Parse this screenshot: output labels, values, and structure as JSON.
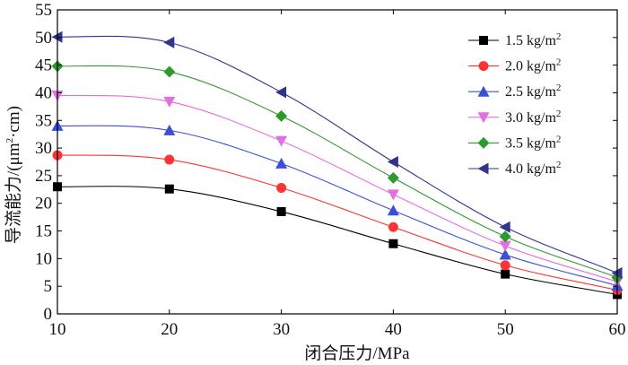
{
  "chart_data": {
    "type": "line",
    "title": "",
    "xlabel": "闭合压力/MPa",
    "ylabel_main": "导流能力/(μm",
    "ylabel_sup": "2",
    "ylabel_tail": "·cm)",
    "x": [
      10,
      20,
      30,
      40,
      50,
      60
    ],
    "xlim": [
      10,
      60
    ],
    "ylim": [
      0,
      55
    ],
    "xticks": [
      "10",
      "20",
      "30",
      "40",
      "50",
      "60"
    ],
    "yticks": [
      "0",
      "5",
      "10",
      "15",
      "20",
      "25",
      "30",
      "35",
      "40",
      "45",
      "50",
      "55"
    ],
    "legend_position": "top-right",
    "series": [
      {
        "name": "1.5 kg/m",
        "sup": "2",
        "color": "#000000",
        "marker": "square",
        "values": [
          23.0,
          22.6,
          18.5,
          12.7,
          7.2,
          3.5
        ]
      },
      {
        "name": "2.0 kg/m",
        "sup": "2",
        "color": "#ff3333",
        "marker": "circle",
        "values": [
          28.7,
          27.9,
          22.8,
          15.7,
          8.8,
          4.3
        ]
      },
      {
        "name": "2.5 kg/m",
        "sup": "2",
        "color": "#3b4fd9",
        "marker": "triangle-up",
        "values": [
          34.0,
          33.2,
          27.2,
          18.7,
          10.7,
          5.1
        ]
      },
      {
        "name": "3.0 kg/m",
        "sup": "2",
        "color": "#e36fe0",
        "marker": "triangle-down",
        "values": [
          39.5,
          38.4,
          31.3,
          21.6,
          12.3,
          5.8
        ]
      },
      {
        "name": "3.5 kg/m",
        "sup": "2",
        "color": "#2e9a2e",
        "marker": "diamond",
        "values": [
          44.8,
          43.8,
          35.8,
          24.6,
          14.0,
          6.6
        ]
      },
      {
        "name": "4.0 kg/m",
        "sup": "2",
        "color": "#33338c",
        "marker": "triangle-left",
        "values": [
          50.1,
          49.1,
          40.1,
          27.5,
          15.7,
          7.4
        ]
      }
    ]
  }
}
